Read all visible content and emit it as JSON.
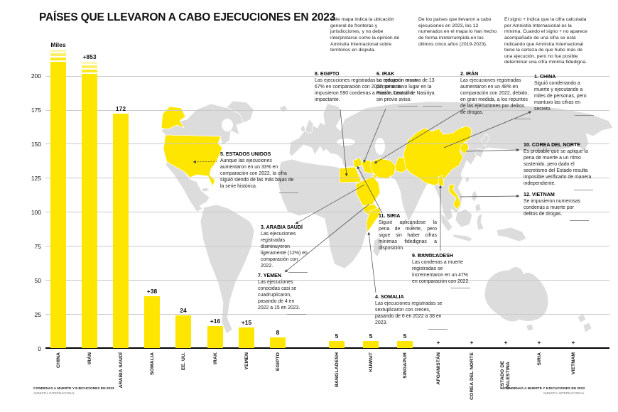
{
  "title": "PAÍSES QUE LLEVARON A CABO EJECUCIONES EN 2023",
  "disclaimers": [
    "Este mapa indica la ubicación general de fronteras y jurisdicciones, y no debe interpretarse como la opinión de Amnistía Internacional sobre territorios en disputa.",
    "De los países que llevaron a cabo ejecuciones en 2023, los 12 numerados en el mapa lo han hecho de forma ininterrumpida en los últimos cinco años (2019-2023).",
    "El signo + indica que la cifra calculada por Amnistía Internacional es la mínima. Cuando el signo + no aparece acompañado de una cifra se está indicando que Amnistía Internacional tiene la certeza de que hubo más de una ejecución, pero no fue posible determinar una cifra mínima fidedigna."
  ],
  "chart_data": {
    "type": "bar",
    "title": "PAÍSES QUE LLEVARON A CABO EJECUCIONES EN 2023",
    "unit_label": "Miles",
    "categories": [
      "CHINA",
      "IRÁN",
      "ARABIA SAUDÍ",
      "SOMALIA",
      "EE. UU.",
      "IRAK",
      "YEMEN",
      "EGIPTO",
      "BANGLADESH",
      "KUWAIT",
      "SINGAPUR",
      "AFGANISTÁN",
      "COREA DEL NORTE",
      "ESTADO DE PALESTINA",
      "SIRIA",
      "VIETNAM"
    ],
    "values": [
      null,
      853,
      172,
      38,
      24,
      16,
      15,
      8,
      5,
      5,
      5,
      null,
      null,
      null,
      null,
      null
    ],
    "value_labels": [
      "Miles",
      "+853",
      "172",
      "+38",
      "24",
      "+16",
      "+15",
      "8",
      "5",
      "5",
      "5",
      "+",
      "+",
      "+",
      "+",
      "+"
    ],
    "broken_axis_bars": [
      "CHINA",
      "IRÁN"
    ],
    "yticks": [
      0,
      25,
      50,
      75,
      100,
      125,
      150,
      175,
      200
    ],
    "ylim": [
      0,
      215
    ],
    "grid": true,
    "legend": null,
    "xlabel": "",
    "ylabel": ""
  },
  "annotations": [
    {
      "id": "egipto",
      "heading": "8. EGIPTO",
      "body": "Las ejecuciones registradas se redujeron en un 67% en comparación con 2022, pero se impusieron 590 condenas a muerte, una cifra impactante."
    },
    {
      "id": "irak",
      "heading": "6. IRAK",
      "body": "La ejecución masiva de 13 personas tuvo lugar en la Prisión Central de Nasiriya sin previo aviso."
    },
    {
      "id": "iran",
      "heading": "2. IRÁN",
      "body": "Las ejecuciones registradas aumentaron en un 48% en comparación con 2022, debido, en gran medida, a los repuntes de las ejecuciones por delitos de drogas."
    },
    {
      "id": "china",
      "heading": "1. CHINA",
      "body": "Siguió condenando a muerte y ejecutando a miles de personas, pero mantuvo las cifras en secreto."
    },
    {
      "id": "corea-del-norte",
      "heading": "10. COREA DEL NORTE",
      "body": "Es probable que se aplique la pena de muerte a un ritmo sostenido, pero dado el secretismo del Estado resulta imposible verificarlo de manera independiente."
    },
    {
      "id": "vietnam",
      "heading": "12. VIETNAM",
      "body": "Se impusieron numerosas condenas a muerte por delitos de drogas."
    },
    {
      "id": "estados-unidos",
      "heading": "5. ESTADOS UNIDOS",
      "body": "Aunque las ejecuciones aumentaron en un 33% en comparación con 2022, la cifra siguió siendo de las más bajas de la serie histórica."
    },
    {
      "id": "arabia-saudi",
      "heading": "3. ARABIA SAUDÍ",
      "body": "Las ejecuciones registradas disminuyeron ligeramente (12%) en comparación con 2022."
    },
    {
      "id": "yemen",
      "heading": "7. YEMEN",
      "body": "Las ejecuciones conocidas casi se cuadruplicaron, pasando de 4 en 2022 a 15 en 2023."
    },
    {
      "id": "siria",
      "heading": "11. SIRIA",
      "body": "Siguió aplicándose la pena de muerte, pero sigue sin haber cifras mínimas fidedignas a disposición."
    },
    {
      "id": "bangladesh",
      "heading": "9. BANGLADESH",
      "body": "Las condenas a muerte registradas se incrementaron en un 47% en comparación con 2022."
    },
    {
      "id": "somalia",
      "heading": "4. SOMALIA",
      "body": "Las ejecuciones registradas se sextuplicaron con creces, pasando de 6 en 2022 a 38 en 2023."
    }
  ],
  "map": {
    "highlighted_countries": [
      "EE. UU. (incl. Alaska)",
      "Egipto",
      "Siria",
      "Irak",
      "Kuwait",
      "Arabia Saudí",
      "Yemen",
      "Somalia",
      "Irán",
      "Afganistán",
      "China",
      "Corea del Norte",
      "Vietnam",
      "Bangladesh"
    ]
  },
  "footers": {
    "left": [
      "CONDENAS A MUERTE Y EJECUCIONES EN 2023",
      "AMNISTÍA INTERNACIONAL"
    ],
    "right": [
      "CONDENAS A MUERTE Y EJECUCIONES EN 2023",
      "AMNISTÍA INTERNACIONAL"
    ]
  },
  "colors": {
    "highlight_yellow": "#FFE600",
    "land_gray": "#DCDCDC",
    "grid_gray": "#C9C9C9",
    "leader_line": "#444444",
    "text": "#1A1A1A"
  }
}
